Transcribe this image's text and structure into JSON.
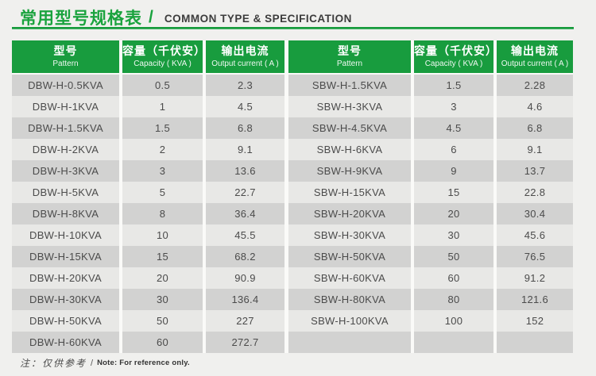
{
  "page": {
    "title_zh": "常用型号规格表",
    "title_slash": "/",
    "title_en": "COMMON TYPE & SPECIFICATION",
    "note_zh": "注：仅供参考",
    "note_sep": "/",
    "note_en": "Note: For reference only.",
    "colors": {
      "accent_green": "#189c3e",
      "row_dark": "#d2d2d1",
      "row_light": "#e8e8e6",
      "page_bg": "#f0f0ee"
    }
  },
  "table_header": {
    "pattern_zh": "型号",
    "pattern_en": "Pattern",
    "capacity_zh": "容量（千伏安）",
    "capacity_en": "Capacity ( KVA )",
    "output_zh": "输出电流",
    "output_en": "Output current ( A )"
  },
  "tables": {
    "left": {
      "rows": [
        [
          "DBW-H-0.5KVA",
          "0.5",
          "2.3"
        ],
        [
          "DBW-H-1KVA",
          "1",
          "4.5"
        ],
        [
          "DBW-H-1.5KVA",
          "1.5",
          "6.8"
        ],
        [
          "DBW-H-2KVA",
          "2",
          "9.1"
        ],
        [
          "DBW-H-3KVA",
          "3",
          "13.6"
        ],
        [
          "DBW-H-5KVA",
          "5",
          "22.7"
        ],
        [
          "DBW-H-8KVA",
          "8",
          "36.4"
        ],
        [
          "DBW-H-10KVA",
          "10",
          "45.5"
        ],
        [
          "DBW-H-15KVA",
          "15",
          "68.2"
        ],
        [
          "DBW-H-20KVA",
          "20",
          "90.9"
        ],
        [
          "DBW-H-30KVA",
          "30",
          "136.4"
        ],
        [
          "DBW-H-50KVA",
          "50",
          "227"
        ],
        [
          "DBW-H-60KVA",
          "60",
          "272.7"
        ]
      ]
    },
    "right": {
      "rows": [
        [
          "SBW-H-1.5KVA",
          "1.5",
          "2.28"
        ],
        [
          "SBW-H-3KVA",
          "3",
          "4.6"
        ],
        [
          "SBW-H-4.5KVA",
          "4.5",
          "6.8"
        ],
        [
          "SBW-H-6KVA",
          "6",
          "9.1"
        ],
        [
          "SBW-H-9KVA",
          "9",
          "13.7"
        ],
        [
          "SBW-H-15KVA",
          "15",
          "22.8"
        ],
        [
          "SBW-H-20KVA",
          "20",
          "30.4"
        ],
        [
          "SBW-H-30KVA",
          "30",
          "45.6"
        ],
        [
          "SBW-H-50KVA",
          "50",
          "76.5"
        ],
        [
          "SBW-H-60KVA",
          "60",
          "91.2"
        ],
        [
          "SBW-H-80KVA",
          "80",
          "121.6"
        ],
        [
          "SBW-H-100KVA",
          "100",
          "152"
        ],
        [
          "",
          "",
          ""
        ]
      ]
    }
  }
}
